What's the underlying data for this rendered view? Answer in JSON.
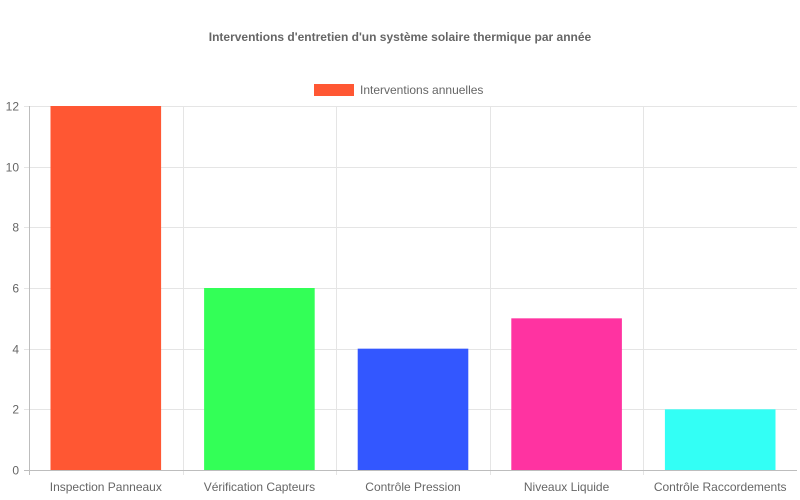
{
  "chart_data": {
    "type": "bar",
    "title": "Interventions d'entretien d'un système solaire thermique par année",
    "xlabel": "",
    "ylabel": "",
    "categories": [
      "Inspection Panneaux",
      "Vérification Capteurs",
      "Contrôle Pression",
      "Niveaux Liquide",
      "Contrôle Raccordements"
    ],
    "series": [
      {
        "name": "Interventions annuelles",
        "values": [
          12,
          6,
          4,
          5,
          2
        ],
        "colors": [
          "#ff5733",
          "#33ff57",
          "#3357ff",
          "#ff33a1",
          "#33fff5"
        ]
      }
    ],
    "ylim": [
      0,
      12
    ],
    "yticks": [
      0,
      2,
      4,
      6,
      8,
      10,
      12
    ],
    "grid": true,
    "legend_position": "top"
  }
}
